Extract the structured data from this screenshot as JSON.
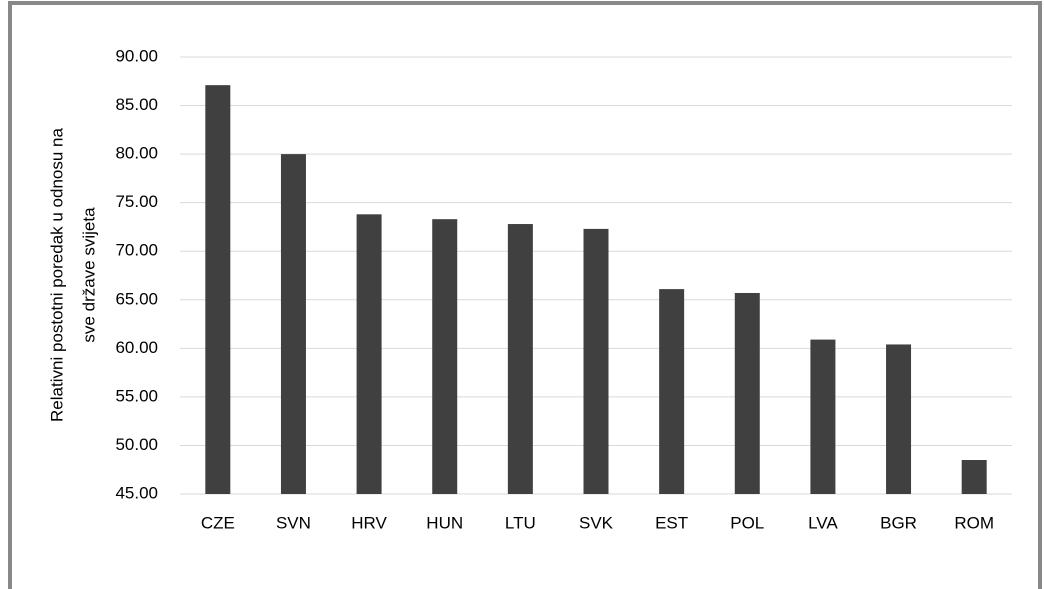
{
  "chart_data": {
    "type": "bar",
    "ylabel": [
      "Relativni postotni poredak u odnosu na",
      "sve države svijeta"
    ],
    "categories": [
      "CZE",
      "SVN",
      "HRV",
      "HUN",
      "LTU",
      "SVK",
      "EST",
      "POL",
      "LVA",
      "BGR",
      "ROM"
    ],
    "values": [
      87.1,
      80.0,
      73.8,
      73.3,
      72.8,
      72.3,
      66.1,
      65.7,
      60.9,
      60.4,
      48.5
    ],
    "color": "#404040",
    "ylim": [
      45,
      90
    ],
    "yticks": [
      {
        "value": 45,
        "label": "45.00"
      },
      {
        "value": 50,
        "label": "50.00"
      },
      {
        "value": 55,
        "label": "55.00"
      },
      {
        "value": 60,
        "label": "60.00"
      },
      {
        "value": 65,
        "label": "65.00"
      },
      {
        "value": 70,
        "label": "70.00"
      },
      {
        "value": 75,
        "label": "75.00"
      },
      {
        "value": 80,
        "label": "80.00"
      },
      {
        "value": 85,
        "label": "85.00"
      },
      {
        "value": 90,
        "label": "90.00"
      }
    ],
    "grid": true
  }
}
